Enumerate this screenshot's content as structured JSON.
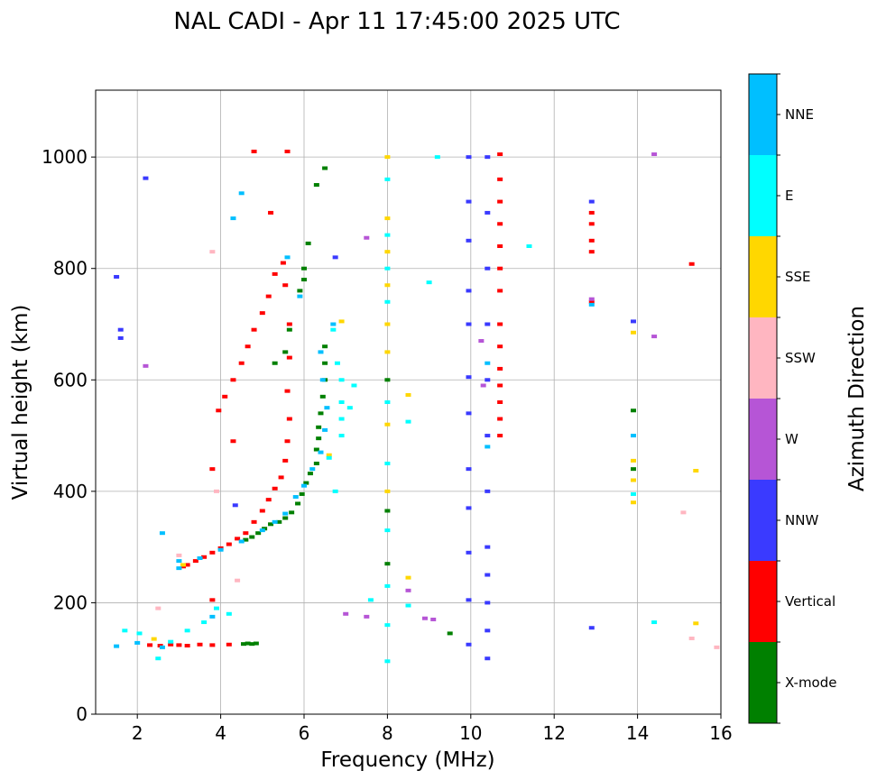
{
  "chart_data": {
    "type": "scatter",
    "title": "NAL CADI - Apr 11 17:45:00 2025 UTC",
    "xlabel": "Frequency (MHz)",
    "ylabel": "Virtual height (km)",
    "xlim": [
      1,
      16
    ],
    "ylim": [
      0,
      1120
    ],
    "xticks": [
      2,
      4,
      6,
      8,
      10,
      12,
      14,
      16
    ],
    "yticks": [
      0,
      200,
      400,
      600,
      800,
      1000
    ],
    "grid": true,
    "colorbar": {
      "label": "Azimuth Direction",
      "categories": [
        "X-mode",
        "Vertical",
        "NNW",
        "W",
        "SSW",
        "SSE",
        "E",
        "NNE"
      ],
      "colors": [
        "#008000",
        "#ff0000",
        "#3a3aff",
        "#b655d6",
        "#ffb6c1",
        "#ffd700",
        "#00ffff",
        "#00bfff"
      ]
    },
    "series": [
      {
        "name": "X-mode",
        "points": [
          [
            4.55,
            126
          ],
          [
            4.65,
            127
          ],
          [
            4.75,
            126
          ],
          [
            4.85,
            127
          ],
          [
            4.6,
            313
          ],
          [
            4.75,
            318
          ],
          [
            4.9,
            325
          ],
          [
            5.05,
            333
          ],
          [
            5.2,
            341
          ],
          [
            5.4,
            345
          ],
          [
            5.55,
            352
          ],
          [
            5.7,
            362
          ],
          [
            5.85,
            378
          ],
          [
            5.95,
            395
          ],
          [
            6.05,
            415
          ],
          [
            6.15,
            432
          ],
          [
            6.3,
            450
          ],
          [
            6.3,
            475
          ],
          [
            6.35,
            495
          ],
          [
            6.35,
            515
          ],
          [
            6.4,
            540
          ],
          [
            6.45,
            570
          ],
          [
            6.5,
            600
          ],
          [
            6.5,
            630
          ],
          [
            6.5,
            660
          ],
          [
            6.0,
            780
          ],
          [
            6.0,
            800
          ],
          [
            6.1,
            845
          ],
          [
            6.3,
            950
          ],
          [
            6.5,
            980
          ],
          [
            5.65,
            690
          ],
          [
            5.55,
            650
          ],
          [
            5.3,
            630
          ],
          [
            8.0,
            270
          ],
          [
            8.0,
            365
          ],
          [
            8.0,
            600
          ],
          [
            9.5,
            145
          ],
          [
            13.9,
            440
          ],
          [
            13.9,
            545
          ],
          [
            5.9,
            760
          ]
        ]
      },
      {
        "name": "Vertical",
        "points": [
          [
            2.3,
            124
          ],
          [
            2.55,
            123
          ],
          [
            2.8,
            125
          ],
          [
            3.0,
            124
          ],
          [
            3.2,
            123
          ],
          [
            3.5,
            125
          ],
          [
            3.8,
            124
          ],
          [
            4.2,
            125
          ],
          [
            3.2,
            268
          ],
          [
            3.4,
            275
          ],
          [
            3.6,
            282
          ],
          [
            3.8,
            290
          ],
          [
            4.0,
            298
          ],
          [
            4.2,
            305
          ],
          [
            4.4,
            315
          ],
          [
            4.6,
            325
          ],
          [
            4.8,
            345
          ],
          [
            5.0,
            365
          ],
          [
            5.15,
            385
          ],
          [
            5.3,
            405
          ],
          [
            5.45,
            425
          ],
          [
            5.55,
            455
          ],
          [
            5.6,
            490
          ],
          [
            5.65,
            530
          ],
          [
            5.6,
            580
          ],
          [
            5.65,
            640
          ],
          [
            5.65,
            700
          ],
          [
            5.55,
            770
          ],
          [
            5.5,
            810
          ],
          [
            5.2,
            900
          ],
          [
            3.1,
            265
          ],
          [
            3.8,
            440
          ],
          [
            3.95,
            545
          ],
          [
            4.1,
            570
          ],
          [
            4.3,
            600
          ],
          [
            4.5,
            630
          ],
          [
            4.65,
            660
          ],
          [
            4.8,
            690
          ],
          [
            5.0,
            720
          ],
          [
            5.15,
            750
          ],
          [
            5.3,
            790
          ],
          [
            4.3,
            490
          ],
          [
            4.8,
            1010
          ],
          [
            5.6,
            1010
          ],
          [
            10.7,
            1005
          ],
          [
            10.7,
            960
          ],
          [
            10.7,
            920
          ],
          [
            10.7,
            880
          ],
          [
            10.7,
            840
          ],
          [
            10.7,
            800
          ],
          [
            10.7,
            760
          ],
          [
            10.7,
            700
          ],
          [
            10.7,
            660
          ],
          [
            10.7,
            620
          ],
          [
            10.7,
            590
          ],
          [
            10.7,
            560
          ],
          [
            10.7,
            530
          ],
          [
            10.7,
            500
          ],
          [
            12.9,
            880
          ],
          [
            12.9,
            850
          ],
          [
            12.9,
            830
          ],
          [
            12.9,
            900
          ],
          [
            12.9,
            740
          ],
          [
            15.3,
            808
          ],
          [
            3.8,
            205
          ]
        ]
      },
      {
        "name": "NNW",
        "points": [
          [
            1.5,
            785
          ],
          [
            1.6,
            690
          ],
          [
            1.6,
            675
          ],
          [
            2.2,
            962
          ],
          [
            4.35,
            375
          ],
          [
            9.95,
            1000
          ],
          [
            9.95,
            920
          ],
          [
            9.95,
            850
          ],
          [
            9.95,
            760
          ],
          [
            9.95,
            700
          ],
          [
            9.95,
            605
          ],
          [
            9.95,
            540
          ],
          [
            9.95,
            440
          ],
          [
            9.95,
            370
          ],
          [
            9.95,
            290
          ],
          [
            9.95,
            205
          ],
          [
            9.95,
            125
          ],
          [
            10.4,
            1000
          ],
          [
            10.4,
            900
          ],
          [
            10.4,
            800
          ],
          [
            10.4,
            700
          ],
          [
            10.4,
            600
          ],
          [
            10.4,
            500
          ],
          [
            10.4,
            400
          ],
          [
            10.4,
            300
          ],
          [
            10.4,
            250
          ],
          [
            10.4,
            200
          ],
          [
            10.4,
            150
          ],
          [
            10.4,
            100
          ],
          [
            12.9,
            920
          ],
          [
            12.9,
            155
          ],
          [
            13.9,
            705
          ],
          [
            6.75,
            820
          ]
        ]
      },
      {
        "name": "W",
        "points": [
          [
            2.2,
            625
          ],
          [
            7.5,
            855
          ],
          [
            8.9,
            172
          ],
          [
            9.1,
            170
          ],
          [
            7.5,
            175
          ],
          [
            7.0,
            180
          ],
          [
            10.25,
            670
          ],
          [
            10.3,
            590
          ],
          [
            14.4,
            1005
          ],
          [
            14.4,
            678
          ],
          [
            12.9,
            745
          ],
          [
            8.5,
            222
          ]
        ]
      },
      {
        "name": "SSW",
        "points": [
          [
            3.8,
            830
          ],
          [
            3.9,
            400
          ],
          [
            4.4,
            240
          ],
          [
            15.1,
            362
          ],
          [
            15.3,
            136
          ],
          [
            15.9,
            120
          ],
          [
            2.5,
            190
          ],
          [
            3.0,
            285
          ]
        ]
      },
      {
        "name": "SSE",
        "points": [
          [
            8.0,
            1000
          ],
          [
            8.0,
            890
          ],
          [
            8.0,
            830
          ],
          [
            8.0,
            770
          ],
          [
            8.0,
            700
          ],
          [
            8.0,
            650
          ],
          [
            8.0,
            520
          ],
          [
            8.0,
            400
          ],
          [
            8.5,
            573
          ],
          [
            8.5,
            245
          ],
          [
            13.9,
            455
          ],
          [
            13.9,
            420
          ],
          [
            13.9,
            380
          ],
          [
            13.9,
            685
          ],
          [
            15.4,
            437
          ],
          [
            15.4,
            163
          ],
          [
            6.9,
            705
          ],
          [
            6.6,
            465
          ],
          [
            2.4,
            135
          ],
          [
            3.1,
            268
          ]
        ]
      },
      {
        "name": "E",
        "points": [
          [
            2.5,
            100
          ],
          [
            2.8,
            130
          ],
          [
            3.2,
            150
          ],
          [
            3.6,
            165
          ],
          [
            3.9,
            190
          ],
          [
            4.2,
            180
          ],
          [
            6.9,
            560
          ],
          [
            6.9,
            600
          ],
          [
            6.8,
            630
          ],
          [
            6.7,
            690
          ],
          [
            6.9,
            530
          ],
          [
            7.1,
            550
          ],
          [
            6.9,
            500
          ],
          [
            6.6,
            460
          ],
          [
            6.75,
            400
          ],
          [
            7.2,
            590
          ],
          [
            7.6,
            205
          ],
          [
            8.0,
            960
          ],
          [
            8.0,
            860
          ],
          [
            8.0,
            800
          ],
          [
            8.0,
            740
          ],
          [
            8.0,
            560
          ],
          [
            8.0,
            450
          ],
          [
            8.0,
            330
          ],
          [
            8.0,
            230
          ],
          [
            8.0,
            160
          ],
          [
            8.0,
            95
          ],
          [
            8.5,
            525
          ],
          [
            8.5,
            195
          ],
          [
            9.2,
            1000
          ],
          [
            9.0,
            775
          ],
          [
            11.4,
            840
          ],
          [
            14.4,
            165
          ],
          [
            13.9,
            395
          ],
          [
            1.7,
            150
          ],
          [
            2.05,
            145
          ]
        ]
      },
      {
        "name": "NNE",
        "points": [
          [
            1.5,
            122
          ],
          [
            2.0,
            128
          ],
          [
            2.6,
            120
          ],
          [
            3.0,
            275
          ],
          [
            3.5,
            280
          ],
          [
            4.0,
            295
          ],
          [
            4.5,
            310
          ],
          [
            5.0,
            330
          ],
          [
            5.3,
            345
          ],
          [
            5.55,
            360
          ],
          [
            5.8,
            390
          ],
          [
            6.0,
            410
          ],
          [
            6.2,
            440
          ],
          [
            6.4,
            470
          ],
          [
            6.5,
            510
          ],
          [
            6.55,
            550
          ],
          [
            6.45,
            600
          ],
          [
            6.4,
            650
          ],
          [
            6.7,
            700
          ],
          [
            5.9,
            750
          ],
          [
            5.6,
            820
          ],
          [
            4.5,
            935
          ],
          [
            4.3,
            890
          ],
          [
            3.8,
            175
          ],
          [
            2.6,
            325
          ],
          [
            10.4,
            630
          ],
          [
            10.4,
            480
          ],
          [
            12.9,
            735
          ],
          [
            13.9,
            500
          ],
          [
            3.0,
            262
          ]
        ]
      }
    ]
  }
}
